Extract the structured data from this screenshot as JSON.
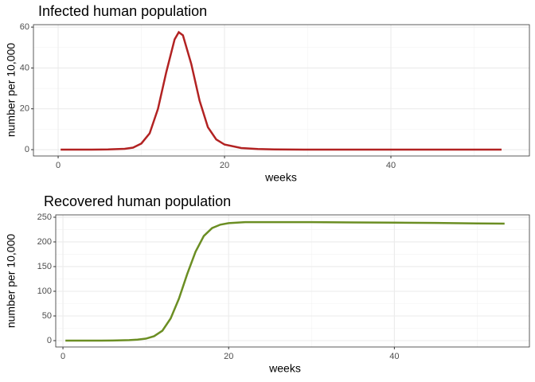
{
  "chart_data": [
    {
      "type": "line",
      "title": "Infected human population",
      "xlabel": "weeks",
      "ylabel": "number per 10,000",
      "x": [
        0.3,
        2,
        4,
        6,
        8,
        9,
        10,
        11,
        12,
        13,
        14,
        14.5,
        15,
        16,
        17,
        18,
        19,
        20,
        22,
        24,
        26,
        30,
        35,
        40,
        45,
        50,
        53.3
      ],
      "series": [
        {
          "name": "Infected",
          "color": "#b22222",
          "values": [
            0,
            0,
            0,
            0.1,
            0.4,
            1,
            3,
            8,
            20,
            38,
            54,
            57.5,
            56,
            42,
            24,
            11,
            5,
            2.5,
            0.8,
            0.3,
            0.1,
            0,
            0,
            0,
            0,
            0,
            0
          ]
        }
      ],
      "xlim": [
        -2.97,
        56.65
      ],
      "xticks": [
        0,
        20,
        40
      ],
      "ylim": [
        -3.1,
        61.2
      ],
      "yticks": [
        0,
        20,
        40,
        60
      ],
      "grid": true
    },
    {
      "type": "line",
      "title": "Recovered human population",
      "xlabel": "weeks",
      "ylabel": "number per 10,000",
      "x": [
        0.3,
        2,
        4,
        6,
        8,
        9,
        10,
        11,
        12,
        13,
        14,
        14.5,
        15,
        16,
        17,
        18,
        19,
        20,
        22,
        24,
        26,
        30,
        35,
        40,
        45,
        50,
        53.3
      ],
      "series": [
        {
          "name": "Recovered",
          "color": "#6b8e23",
          "values": [
            0,
            0,
            0,
            0.2,
            1,
            2,
            4,
            9,
            20,
            45,
            85,
            110,
            135,
            180,
            212,
            228,
            235,
            238,
            240,
            240,
            240,
            240,
            239.5,
            239,
            238.5,
            237.5,
            237
          ]
        }
      ],
      "xlim": [
        -0.87,
        56.3
      ],
      "xticks": [
        0,
        20,
        40
      ],
      "ylim": [
        -12.9,
        254.8
      ],
      "yticks": [
        0,
        50,
        100,
        150,
        200,
        250
      ],
      "grid": true
    }
  ]
}
